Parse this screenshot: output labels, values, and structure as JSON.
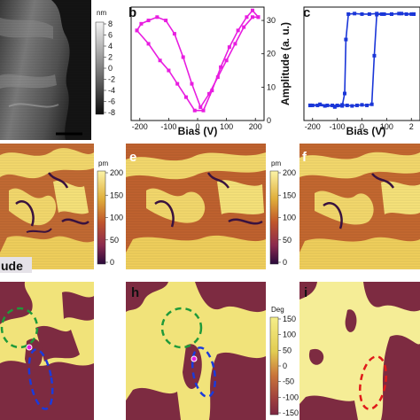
{
  "panels": {
    "b": "b",
    "c": "c",
    "e": "e",
    "f": "f",
    "h": "h",
    "i": "i"
  },
  "row_label_fragment": "ude",
  "colorbars": {
    "height": {
      "unit": "nm",
      "ticks": [
        "8",
        "6",
        "4",
        "2",
        "0",
        "-2",
        "-4",
        "-6",
        "-8"
      ],
      "colors": [
        "#f4f4f4",
        "#0c0c0c"
      ]
    },
    "amplitude": {
      "unit": "pm",
      "ticks": [
        "200",
        "150",
        "100",
        "50",
        "0"
      ],
      "colors": [
        "#fbf3a6",
        "#e0ae3a",
        "#c0552b",
        "#8a2a4e",
        "#2a0a3c"
      ]
    },
    "phase": {
      "unit": "Deg",
      "ticks": [
        "150",
        "100",
        "50",
        "0",
        "-50",
        "-100",
        "-150"
      ],
      "colors": [
        "#f5ee8a",
        "#e2cc52",
        "#c9743a",
        "#9c3d3e",
        "#7b2742"
      ]
    }
  },
  "chart_data": [
    {
      "type": "line",
      "panel": "b",
      "xlabel": "Bias (V)",
      "ylabel": "",
      "xlim": [
        -230,
        230
      ],
      "ylim": [
        0,
        34
      ],
      "xticks": [
        "-200",
        "-100",
        "0",
        "100",
        "200"
      ],
      "yticks": [
        "0",
        "10",
        "20",
        "30"
      ],
      "color": "#e81ee0",
      "series": [
        {
          "x": [
            -210,
            -170,
            -130,
            -100,
            -70,
            -40,
            -10,
            20,
            50,
            80,
            110,
            140,
            170,
            190,
            210
          ],
          "y": [
            27,
            23,
            18,
            15,
            11,
            7,
            3,
            3,
            9,
            16,
            22,
            27,
            31,
            33,
            31
          ]
        },
        {
          "x": [
            -210,
            -195,
            -170,
            -140,
            -110,
            -80,
            -50,
            -20,
            10,
            40,
            70,
            100,
            130,
            160,
            190,
            210
          ],
          "y": [
            27,
            29,
            30,
            31,
            30,
            26,
            19,
            11,
            4,
            8,
            13,
            18,
            23,
            28,
            31,
            31
          ]
        }
      ]
    },
    {
      "type": "line",
      "panel": "c",
      "xlabel": "Bias (V)",
      "ylabel": "Amplitude (a. u.)",
      "xlim": [
        -235,
        235
      ],
      "ylim": [
        -1,
        1.1
      ],
      "xticks": [
        "-200",
        "-100",
        "0",
        "100",
        "2"
      ],
      "color": "#1a36d8",
      "series": [
        {
          "x": [
            -210,
            -180,
            -150,
            -120,
            -100,
            -80,
            -60,
            -40,
            -20,
            0,
            20,
            40,
            50,
            60,
            80,
            120,
            160,
            200,
            210
          ],
          "y": [
            -0.72,
            -0.72,
            -0.73,
            -0.72,
            -0.72,
            -0.71,
            -0.72,
            -0.73,
            -0.72,
            -0.71,
            -0.72,
            -0.7,
            0.2,
            0.96,
            0.97,
            0.97,
            0.98,
            0.97,
            0.97
          ]
        },
        {
          "x": [
            210,
            180,
            150,
            120,
            90,
            60,
            30,
            0,
            -30,
            -55,
            -65,
            -70,
            -80,
            -110,
            -140,
            -170,
            -200,
            -210
          ],
          "y": [
            0.97,
            0.97,
            0.98,
            0.97,
            0.97,
            0.98,
            0.97,
            0.97,
            0.98,
            0.97,
            0.5,
            -0.5,
            -0.73,
            -0.75,
            -0.72,
            -0.7,
            -0.72,
            -0.72
          ]
        }
      ]
    }
  ]
}
